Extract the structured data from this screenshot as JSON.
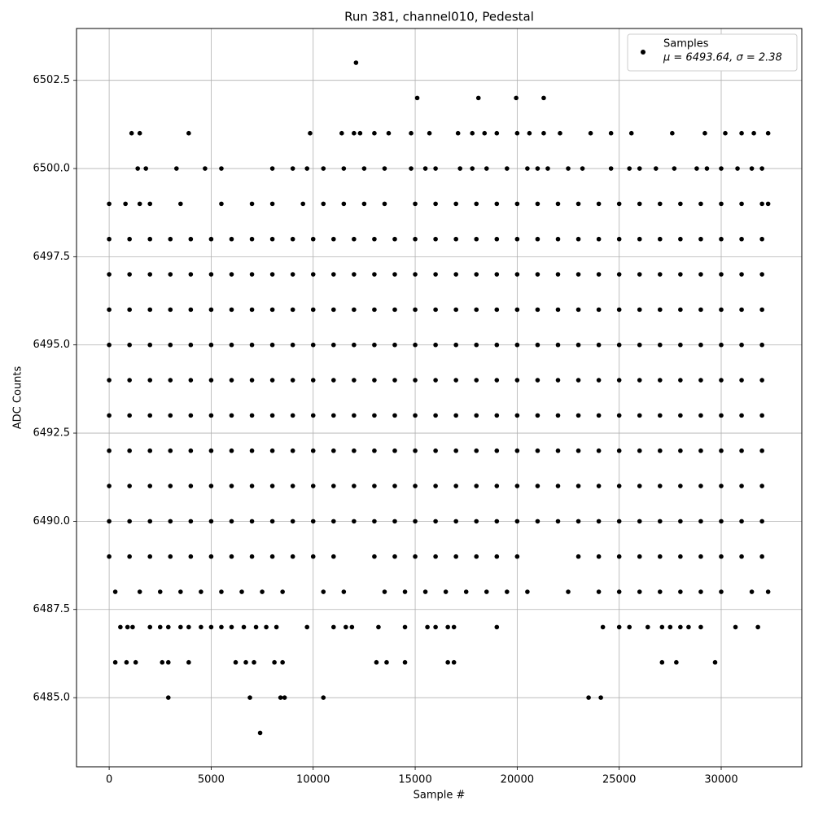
{
  "chart_data": {
    "type": "scatter",
    "title": "Run 381, channel010, Pedestal",
    "x_label": "Sample #",
    "y_label": "ADC Counts",
    "annotation": "μ = 6493.64, σ = 2.38",
    "legend": "upper right",
    "grid": true,
    "xlim": [
      -1600,
      33950
    ],
    "ylim": [
      6483.04,
      6503.97
    ],
    "xticks": [
      0,
      5000,
      10000,
      15000,
      20000,
      25000,
      30000
    ],
    "yticks": [
      {
        "value": 6485,
        "label": "6485.0"
      },
      {
        "value": 6487.5,
        "label": "6487.5"
      },
      {
        "value": 6490,
        "label": "6490.0"
      },
      {
        "value": 6492.5,
        "label": "6492.5"
      },
      {
        "value": 6495,
        "label": "6495.0"
      },
      {
        "value": 6497.5,
        "label": "6497.5"
      },
      {
        "value": 6500,
        "label": "6500.0"
      },
      {
        "value": 6502.5,
        "label": "6502.5"
      }
    ],
    "x": [
      0,
      1000,
      2000,
      3000,
      4000,
      5000,
      6000,
      7000,
      8000,
      9000,
      10000,
      11000,
      12000,
      13000,
      14000,
      15000,
      16000,
      17000,
      18000,
      19000,
      20000,
      21000,
      22000,
      23000,
      24000,
      25000,
      26000,
      27000,
      28000,
      29000,
      30000,
      31000,
      32000,
      0,
      1000,
      2000,
      3000,
      4000,
      5000,
      6000,
      7000,
      8000,
      9000,
      10000,
      11000,
      12000,
      13000,
      14000,
      15000,
      16000,
      17000,
      18000,
      19000,
      20000,
      21000,
      22000,
      23000,
      24000,
      25000,
      26000,
      27000,
      28000,
      29000,
      30000,
      31000,
      32000,
      0,
      1000,
      2000,
      3000,
      4000,
      5000,
      6000,
      7000,
      8000,
      9000,
      10000,
      11000,
      12000,
      13000,
      14000,
      15000,
      16000,
      17000,
      18000,
      19000,
      20000,
      21000,
      22000,
      23000,
      24000,
      25000,
      26000,
      27000,
      28000,
      29000,
      30000,
      31000,
      32000,
      0,
      1000,
      2000,
      3000,
      4000,
      5000,
      6000,
      7000,
      8000,
      9000,
      10000,
      11000,
      12000,
      13000,
      14000,
      15000,
      16000,
      17000,
      18000,
      19000,
      20000,
      21000,
      22000,
      23000,
      24000,
      25000,
      26000,
      27000,
      28000,
      29000,
      30000,
      31000,
      32000,
      0,
      1000,
      2000,
      3000,
      4000,
      5000,
      6000,
      7000,
      8000,
      9000,
      10000,
      11000,
      12000,
      13000,
      14000,
      15000,
      16000,
      17000,
      18000,
      19000,
      20000,
      21000,
      22000,
      23000,
      24000,
      25000,
      26000,
      27000,
      28000,
      29000,
      30000,
      31000,
      32000,
      0,
      1000,
      2000,
      3000,
      4000,
      5000,
      6000,
      7000,
      8000,
      9000,
      10000,
      11000,
      12000,
      13000,
      14000,
      15000,
      16000,
      17000,
      18000,
      19000,
      20000,
      21000,
      22000,
      23000,
      24000,
      25000,
      26000,
      27000,
      28000,
      29000,
      30000,
      31000,
      32000,
      0,
      1000,
      2000,
      3000,
      4000,
      5000,
      6000,
      7000,
      8000,
      9000,
      10000,
      11000,
      12000,
      13000,
      14000,
      15000,
      16000,
      17000,
      18000,
      19000,
      20000,
      21000,
      22000,
      23000,
      24000,
      25000,
      26000,
      27000,
      28000,
      29000,
      30000,
      31000,
      32000,
      0,
      1000,
      2000,
      3000,
      4000,
      5000,
      6000,
      7000,
      8000,
      9000,
      10000,
      11000,
      12000,
      13000,
      14000,
      15000,
      16000,
      17000,
      18000,
      19000,
      20000,
      21000,
      22000,
      23000,
      24000,
      25000,
      26000,
      27000,
      28000,
      29000,
      30000,
      31000,
      32000,
      0,
      1000,
      2000,
      3000,
      4000,
      5000,
      6000,
      7000,
      8000,
      9000,
      10000,
      11000,
      12000,
      13000,
      14000,
      15000,
      16000,
      17000,
      18000,
      19000,
      20000,
      21000,
      22000,
      23000,
      24000,
      25000,
      26000,
      27000,
      28000,
      29000,
      30000,
      31000,
      32000,
      0,
      1000,
      2000,
      3000,
      4000,
      5000,
      6000,
      7000,
      8000,
      9000,
      10000,
      11000,
      13000,
      14000,
      15000,
      16000,
      17000,
      18000,
      19000,
      20000,
      23000,
      24000,
      25000,
      26000,
      27000,
      28000,
      29000,
      30000,
      31000,
      32000,
      300,
      1500,
      2500,
      3500,
      4500,
      5500,
      6500,
      7500,
      8500,
      10500,
      11500,
      13500,
      14500,
      15500,
      16500,
      17500,
      18500,
      19500,
      20500,
      22500,
      24000,
      25000,
      26000,
      27000,
      28000,
      29000,
      30000,
      31500,
      32300,
      0,
      800,
      1500,
      2000,
      3500,
      5500,
      7000,
      8000,
      9500,
      10500,
      11500,
      12500,
      13500,
      15000,
      16000,
      17000,
      18000,
      19000,
      20000,
      21000,
      22000,
      23000,
      24000,
      25000,
      26000,
      27000,
      28000,
      29000,
      30000,
      31000,
      32000,
      32300,
      1400,
      1800,
      3300,
      4700,
      5500,
      8000,
      9000,
      9700,
      10500,
      11500,
      12500,
      13500,
      14800,
      15500,
      16000,
      17200,
      17800,
      18500,
      19500,
      20500,
      21000,
      21500,
      22500,
      23200,
      24600,
      25500,
      26000,
      26800,
      27700,
      28800,
      29300,
      30000,
      30800,
      31500,
      32000,
      1100,
      1500,
      3900,
      9850,
      11400,
      12000,
      12300,
      13000,
      13700,
      14800,
      15700,
      17100,
      17800,
      18400,
      19000,
      20000,
      20600,
      21300,
      22100,
      23600,
      24600,
      25600,
      27600,
      29200,
      30200,
      31000,
      31600,
      32300,
      15100,
      18100,
      19950,
      21300,
      12100,
      550,
      900,
      1150,
      2000,
      2500,
      2900,
      3500,
      3900,
      4500,
      5000,
      5500,
      6000,
      6600,
      7200,
      7700,
      8200,
      9700,
      11000,
      11600,
      11900,
      13200,
      14500,
      15600,
      16000,
      16600,
      16900,
      19000,
      24200,
      25000,
      25500,
      26400,
      27100,
      27500,
      28000,
      28400,
      29000,
      30700,
      31800,
      300,
      850,
      1300,
      2600,
      2900,
      3900,
      6200,
      6700,
      7100,
      8100,
      8500,
      13100,
      13600,
      14500,
      16600,
      16900,
      27100,
      27800,
      29700,
      2900,
      6900,
      8400,
      8600,
      10500,
      23500,
      24100,
      7400
    ],
    "series": [
      {
        "name": "Samples",
        "color": "#000000",
        "values": [
          6490,
          6490,
          6490,
          6490,
          6490,
          6490,
          6490,
          6490,
          6490,
          6490,
          6490,
          6490,
          6490,
          6490,
          6490,
          6490,
          6490,
          6490,
          6490,
          6490,
          6490,
          6490,
          6490,
          6490,
          6490,
          6490,
          6490,
          6490,
          6490,
          6490,
          6490,
          6490,
          6490,
          6491,
          6491,
          6491,
          6491,
          6491,
          6491,
          6491,
          6491,
          6491,
          6491,
          6491,
          6491,
          6491,
          6491,
          6491,
          6491,
          6491,
          6491,
          6491,
          6491,
          6491,
          6491,
          6491,
          6491,
          6491,
          6491,
          6491,
          6491,
          6491,
          6491,
          6491,
          6491,
          6491,
          6492,
          6492,
          6492,
          6492,
          6492,
          6492,
          6492,
          6492,
          6492,
          6492,
          6492,
          6492,
          6492,
          6492,
          6492,
          6492,
          6492,
          6492,
          6492,
          6492,
          6492,
          6492,
          6492,
          6492,
          6492,
          6492,
          6492,
          6492,
          6492,
          6492,
          6492,
          6492,
          6492,
          6493,
          6493,
          6493,
          6493,
          6493,
          6493,
          6493,
          6493,
          6493,
          6493,
          6493,
          6493,
          6493,
          6493,
          6493,
          6493,
          6493,
          6493,
          6493,
          6493,
          6493,
          6493,
          6493,
          6493,
          6493,
          6493,
          6493,
          6493,
          6493,
          6493,
          6493,
          6493,
          6493,
          6494,
          6494,
          6494,
          6494,
          6494,
          6494,
          6494,
          6494,
          6494,
          6494,
          6494,
          6494,
          6494,
          6494,
          6494,
          6494,
          6494,
          6494,
          6494,
          6494,
          6494,
          6494,
          6494,
          6494,
          6494,
          6494,
          6494,
          6494,
          6494,
          6494,
          6494,
          6494,
          6494,
          6495,
          6495,
          6495,
          6495,
          6495,
          6495,
          6495,
          6495,
          6495,
          6495,
          6495,
          6495,
          6495,
          6495,
          6495,
          6495,
          6495,
          6495,
          6495,
          6495,
          6495,
          6495,
          6495,
          6495,
          6495,
          6495,
          6495,
          6495,
          6495,
          6495,
          6495,
          6495,
          6495,
          6496,
          6496,
          6496,
          6496,
          6496,
          6496,
          6496,
          6496,
          6496,
          6496,
          6496,
          6496,
          6496,
          6496,
          6496,
          6496,
          6496,
          6496,
          6496,
          6496,
          6496,
          6496,
          6496,
          6496,
          6496,
          6496,
          6496,
          6496,
          6496,
          6496,
          6496,
          6496,
          6496,
          6497,
          6497,
          6497,
          6497,
          6497,
          6497,
          6497,
          6497,
          6497,
          6497,
          6497,
          6497,
          6497,
          6497,
          6497,
          6497,
          6497,
          6497,
          6497,
          6497,
          6497,
          6497,
          6497,
          6497,
          6497,
          6497,
          6497,
          6497,
          6497,
          6497,
          6497,
          6497,
          6497,
          6498,
          6498,
          6498,
          6498,
          6498,
          6498,
          6498,
          6498,
          6498,
          6498,
          6498,
          6498,
          6498,
          6498,
          6498,
          6498,
          6498,
          6498,
          6498,
          6498,
          6498,
          6498,
          6498,
          6498,
          6498,
          6498,
          6498,
          6498,
          6498,
          6498,
          6498,
          6498,
          6498,
          6489,
          6489,
          6489,
          6489,
          6489,
          6489,
          6489,
          6489,
          6489,
          6489,
          6489,
          6489,
          6489,
          6489,
          6489,
          6489,
          6489,
          6489,
          6489,
          6489,
          6489,
          6489,
          6489,
          6489,
          6489,
          6489,
          6489,
          6489,
          6489,
          6489,
          6488,
          6488,
          6488,
          6488,
          6488,
          6488,
          6488,
          6488,
          6488,
          6488,
          6488,
          6488,
          6488,
          6488,
          6488,
          6488,
          6488,
          6488,
          6488,
          6488,
          6488,
          6488,
          6488,
          6488,
          6488,
          6488,
          6488,
          6488,
          6488,
          6499,
          6499,
          6499,
          6499,
          6499,
          6499,
          6499,
          6499,
          6499,
          6499,
          6499,
          6499,
          6499,
          6499,
          6499,
          6499,
          6499,
          6499,
          6499,
          6499,
          6499,
          6499,
          6499,
          6499,
          6499,
          6499,
          6499,
          6499,
          6499,
          6499,
          6499,
          6499,
          6500,
          6500,
          6500,
          6500,
          6500,
          6500,
          6500,
          6500,
          6500,
          6500,
          6500,
          6500,
          6500,
          6500,
          6500,
          6500,
          6500,
          6500,
          6500,
          6500,
          6500,
          6500,
          6500,
          6500,
          6500,
          6500,
          6500,
          6500,
          6500,
          6500,
          6500,
          6500,
          6500,
          6500,
          6500,
          6501,
          6501,
          6501,
          6501,
          6501,
          6501,
          6501,
          6501,
          6501,
          6501,
          6501,
          6501,
          6501,
          6501,
          6501,
          6501,
          6501,
          6501,
          6501,
          6501,
          6501,
          6501,
          6501,
          6501,
          6501,
          6501,
          6501,
          6501,
          6502,
          6502,
          6502,
          6502,
          6503,
          6487,
          6487,
          6487,
          6487,
          6487,
          6487,
          6487,
          6487,
          6487,
          6487,
          6487,
          6487,
          6487,
          6487,
          6487,
          6487,
          6487,
          6487,
          6487,
          6487,
          6487,
          6487,
          6487,
          6487,
          6487,
          6487,
          6487,
          6487,
          6487,
          6487,
          6487,
          6487,
          6487,
          6487,
          6487,
          6487,
          6487,
          6487,
          6486,
          6486,
          6486,
          6486,
          6486,
          6486,
          6486,
          6486,
          6486,
          6486,
          6486,
          6486,
          6486,
          6486,
          6486,
          6486,
          6486,
          6486,
          6486,
          6485,
          6485,
          6485,
          6485,
          6485,
          6485,
          6485,
          6484
        ]
      }
    ]
  }
}
